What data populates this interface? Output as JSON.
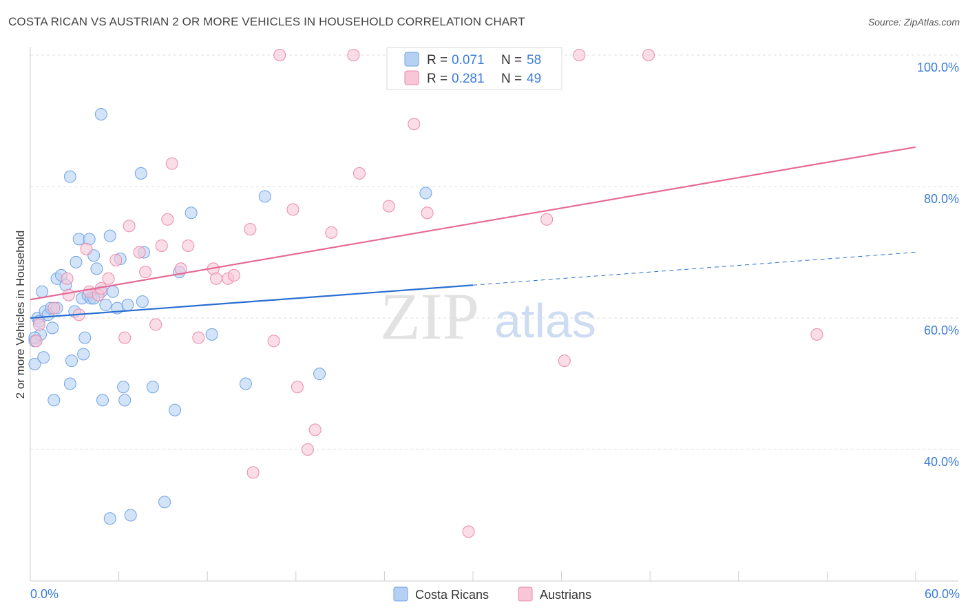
{
  "title": "COSTA RICAN VS AUSTRIAN 2 OR MORE VEHICLES IN HOUSEHOLD CORRELATION CHART",
  "source": "Source: ZipAtlas.com",
  "watermark": {
    "zip": "ZIP",
    "atlas": "atlas"
  },
  "legend_box": {
    "rows": [
      {
        "r_label": "R = ",
        "r_value": "0.071",
        "n_label": "N = ",
        "n_value": "58",
        "color": "#9cc0ee"
      },
      {
        "r_label": "R = ",
        "r_value": "0.281",
        "n_label": "N = ",
        "n_value": "49",
        "color": "#f4aac2"
      }
    ]
  },
  "bottom_legend": [
    {
      "label": "Costa Ricans",
      "color": "#9cc0ee"
    },
    {
      "label": "Austrians",
      "color": "#f4aac2"
    }
  ],
  "chart_data": {
    "type": "scatter",
    "title": "COSTA RICAN VS AUSTRIAN 2 OR MORE VEHICLES IN HOUSEHOLD CORRELATION CHART",
    "xlabel": "",
    "ylabel": "2 or more Vehicles in Household",
    "xlim": [
      0,
      60
    ],
    "ylim": [
      20,
      102
    ],
    "x_tick_labels": [
      "0.0%",
      "60.0%"
    ],
    "y_ticks": [
      40,
      60,
      80,
      100
    ],
    "y_tick_labels": [
      "40.0%",
      "60.0%",
      "80.0%",
      "100.0%"
    ],
    "grid": "horizontal dashed",
    "series": [
      {
        "name": "Costa Ricans",
        "color": "#6fa2e6",
        "fill": "#b6d0f3",
        "trend": {
          "x0": 0,
          "y0": 60.0,
          "x1": 30,
          "y1": 65.0,
          "dashed_to_x": 60,
          "dashed_to_y": 70.0,
          "color": "#2a6fd0"
        },
        "points": [
          [
            0.3,
            53.0
          ],
          [
            0.3,
            56.5
          ],
          [
            0.5,
            60.0
          ],
          [
            0.6,
            59.5
          ],
          [
            0.7,
            57.5
          ],
          [
            0.8,
            64.0
          ],
          [
            0.9,
            54.0
          ],
          [
            1.0,
            61.0
          ],
          [
            1.2,
            60.5
          ],
          [
            1.4,
            61.5
          ],
          [
            1.5,
            58.5
          ],
          [
            1.6,
            47.5
          ],
          [
            1.8,
            61.5
          ],
          [
            1.8,
            66.0
          ],
          [
            2.1,
            66.5
          ],
          [
            2.4,
            65.0
          ],
          [
            2.7,
            81.5
          ],
          [
            2.7,
            50.0
          ],
          [
            2.8,
            53.5
          ],
          [
            3.0,
            61.0
          ],
          [
            3.1,
            68.5
          ],
          [
            3.3,
            72.0
          ],
          [
            3.5,
            63.0
          ],
          [
            3.6,
            54.5
          ],
          [
            3.7,
            57.0
          ],
          [
            3.9,
            63.5
          ],
          [
            4.0,
            72.0
          ],
          [
            4.1,
            63.0
          ],
          [
            4.3,
            69.5
          ],
          [
            4.5,
            67.5
          ],
          [
            4.8,
            64.0
          ],
          [
            4.8,
            91.0
          ],
          [
            4.9,
            47.5
          ],
          [
            5.1,
            62.0
          ],
          [
            5.4,
            72.5
          ],
          [
            5.6,
            64.0
          ],
          [
            5.9,
            61.5
          ],
          [
            6.1,
            69.0
          ],
          [
            6.3,
            49.5
          ],
          [
            6.4,
            47.5
          ],
          [
            6.6,
            62.0
          ],
          [
            7.5,
            82.0
          ],
          [
            7.6,
            62.5
          ],
          [
            7.7,
            70.0
          ],
          [
            8.3,
            49.5
          ],
          [
            9.1,
            32.0
          ],
          [
            9.8,
            46.0
          ],
          [
            10.1,
            67.0
          ],
          [
            10.9,
            76.0
          ],
          [
            12.3,
            57.5
          ],
          [
            14.6,
            50.0
          ],
          [
            15.9,
            78.5
          ],
          [
            19.6,
            51.5
          ],
          [
            26.8,
            79.0
          ],
          [
            5.4,
            29.5
          ],
          [
            6.8,
            30.0
          ],
          [
            0.3,
            57.0
          ],
          [
            4.3,
            63.0
          ]
        ]
      },
      {
        "name": "Austrians",
        "color": "#e98aab",
        "fill": "#f8c6d7",
        "trend": {
          "x0": 0,
          "y0": 62.8,
          "x1": 60,
          "y1": 86.0,
          "color": "#e56a95"
        },
        "points": [
          [
            0.4,
            56.5
          ],
          [
            0.6,
            59.0
          ],
          [
            1.6,
            61.5
          ],
          [
            2.5,
            66.0
          ],
          [
            2.6,
            63.5
          ],
          [
            3.3,
            60.5
          ],
          [
            3.8,
            70.5
          ],
          [
            4.0,
            64.0
          ],
          [
            4.6,
            63.5
          ],
          [
            4.8,
            64.5
          ],
          [
            5.3,
            66.0
          ],
          [
            5.8,
            68.8
          ],
          [
            6.4,
            57.0
          ],
          [
            6.7,
            74.0
          ],
          [
            7.4,
            70.0
          ],
          [
            7.8,
            67.0
          ],
          [
            8.5,
            59.0
          ],
          [
            8.9,
            71.0
          ],
          [
            9.3,
            75.0
          ],
          [
            9.6,
            83.5
          ],
          [
            10.2,
            67.5
          ],
          [
            10.7,
            71.0
          ],
          [
            11.4,
            57.0
          ],
          [
            12.4,
            67.5
          ],
          [
            12.6,
            66.0
          ],
          [
            13.4,
            66.0
          ],
          [
            13.8,
            66.5
          ],
          [
            14.9,
            73.5
          ],
          [
            15.1,
            36.5
          ],
          [
            16.5,
            56.5
          ],
          [
            16.9,
            100.0
          ],
          [
            17.8,
            76.5
          ],
          [
            18.1,
            49.5
          ],
          [
            18.8,
            40.0
          ],
          [
            19.3,
            43.0
          ],
          [
            20.4,
            73.0
          ],
          [
            21.9,
            100.0
          ],
          [
            22.3,
            82.0
          ],
          [
            24.3,
            77.0
          ],
          [
            26.0,
            89.5
          ],
          [
            26.9,
            76.0
          ],
          [
            28.0,
            100.0
          ],
          [
            29.7,
            27.5
          ],
          [
            34.0,
            100.0
          ],
          [
            35.0,
            75.0
          ],
          [
            36.2,
            53.5
          ],
          [
            37.2,
            100.0
          ],
          [
            41.9,
            100.0
          ],
          [
            53.3,
            57.5
          ]
        ]
      }
    ]
  }
}
